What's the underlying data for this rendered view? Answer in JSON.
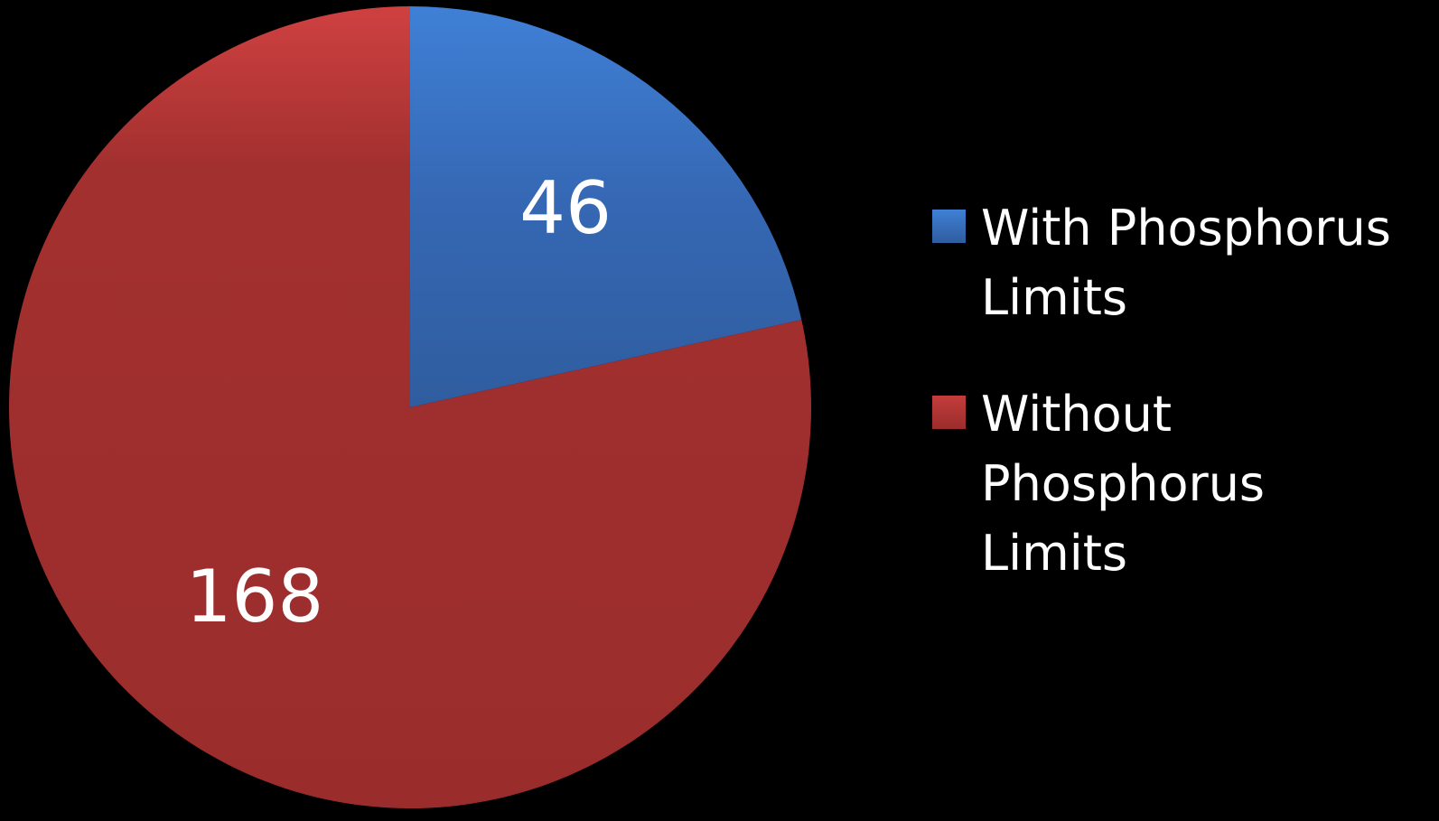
{
  "chart_data": {
    "type": "pie",
    "categories": [
      "With Phosphorus Limits",
      "Without Phosphorus Limits"
    ],
    "values": [
      46,
      168
    ],
    "data_labels": [
      "46",
      "168"
    ],
    "colors": [
      "#3a73c3",
      "#a2302f"
    ],
    "start_angle_direction": "clockwise from 12 o'clock",
    "legend_position": "right"
  },
  "legend": {
    "items": [
      {
        "label": "With Phosphorus Limits",
        "color": "#3a73c3"
      },
      {
        "label": "Without Phosphorus Limits",
        "color": "#a2302f"
      }
    ]
  }
}
